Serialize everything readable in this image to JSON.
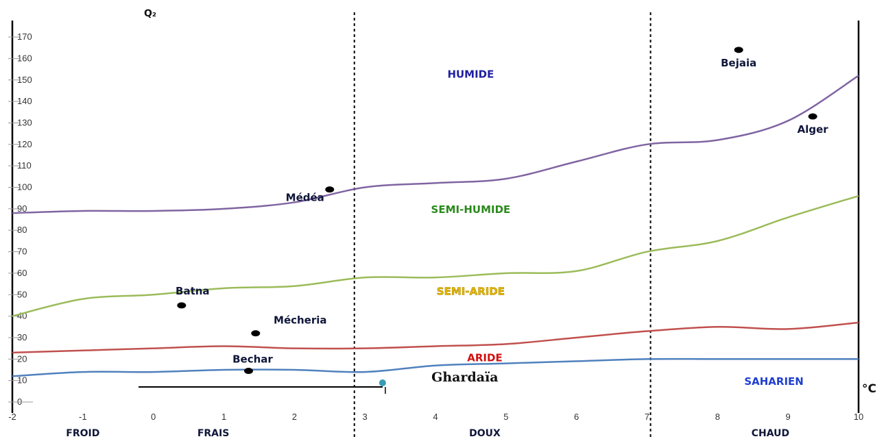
{
  "chart_data": {
    "type": "line",
    "ylabel": "Q₂",
    "xlabel": "°C",
    "xlim": [
      -2,
      10
    ],
    "ylim": [
      0,
      175
    ],
    "x_ticks": [
      "-2",
      "-1",
      "0",
      "1",
      "2",
      "3",
      "4",
      "5",
      "6",
      "7",
      "8",
      "9",
      "10"
    ],
    "y_ticks": [
      "0",
      "10",
      "20",
      "30",
      "40",
      "50",
      "60",
      "70",
      "80",
      "90",
      "100",
      "110",
      "120",
      "130",
      "140",
      "150",
      "160",
      "170"
    ],
    "series": [
      {
        "color": "#8064a2",
        "x": [
          -2,
          -1,
          0,
          1,
          2,
          3,
          4,
          5,
          6,
          7,
          8,
          9,
          10
        ],
        "y": [
          88,
          89,
          89,
          90,
          93,
          100,
          102,
          104,
          112,
          120,
          122,
          131,
          152
        ]
      },
      {
        "color": "#9bbb59",
        "x": [
          -2,
          -1,
          0,
          1,
          2,
          3,
          4,
          5,
          6,
          7,
          8,
          9,
          10
        ],
        "y": [
          40,
          48,
          50,
          53,
          54,
          58,
          58,
          60,
          61,
          70,
          75,
          86,
          96
        ]
      },
      {
        "color": "#c0504d",
        "x": [
          -2,
          -1,
          0,
          1,
          2,
          3,
          4,
          5,
          6,
          7,
          8,
          9,
          10
        ],
        "y": [
          23,
          24,
          25,
          26,
          25,
          25,
          26,
          27,
          30,
          33,
          35,
          34,
          37
        ]
      },
      {
        "color": "#4f81bd",
        "x": [
          -2,
          -1,
          0,
          1,
          2,
          3,
          4,
          5,
          6,
          7,
          8,
          9,
          10
        ],
        "y": [
          12,
          14,
          14,
          15,
          15,
          14,
          17,
          18,
          19,
          20,
          20,
          20,
          20
        ]
      }
    ],
    "zone_labels": [
      {
        "label": "HUMIDE",
        "x": 4.5,
        "y": 151,
        "color": "#1f1fa0"
      },
      {
        "label": "SEMI-HUMIDE",
        "x": 4.5,
        "y": 88,
        "color": "#2a8a1c"
      },
      {
        "label": "SEMI-ARIDE",
        "x": 4.5,
        "y": 50,
        "color": "#e6b800"
      },
      {
        "label": "ARIDE",
        "x": 4.7,
        "y": 19,
        "color": "#d01010"
      },
      {
        "label": "SAHARIEN",
        "x": 8.8,
        "y": 8,
        "color": "#1f3fd0"
      }
    ],
    "stations": [
      {
        "name": "Bejaia",
        "x": 8.3,
        "y": 164
      },
      {
        "name": "Alger",
        "x": 9.35,
        "y": 133
      },
      {
        "name": "Médéa",
        "x": 2.5,
        "y": 99
      },
      {
        "name": "Batna",
        "x": 0.4,
        "y": 45
      },
      {
        "name": "Mécheria",
        "x": 1.45,
        "y": 32
      },
      {
        "name": "Bechar",
        "x": 1.35,
        "y": 14.5
      },
      {
        "name": "Ghardaïa",
        "x": 3.25,
        "y": 7
      }
    ],
    "season_dividers": [
      2.85,
      7.05
    ],
    "seasons": [
      {
        "label": "FROID",
        "x": -1.0
      },
      {
        "label": "FRAIS",
        "x": 0.85
      },
      {
        "label": "DOUX",
        "x": 4.7
      },
      {
        "label": "CHAUD",
        "x": 8.75
      }
    ],
    "legend": "none",
    "grid": false
  }
}
